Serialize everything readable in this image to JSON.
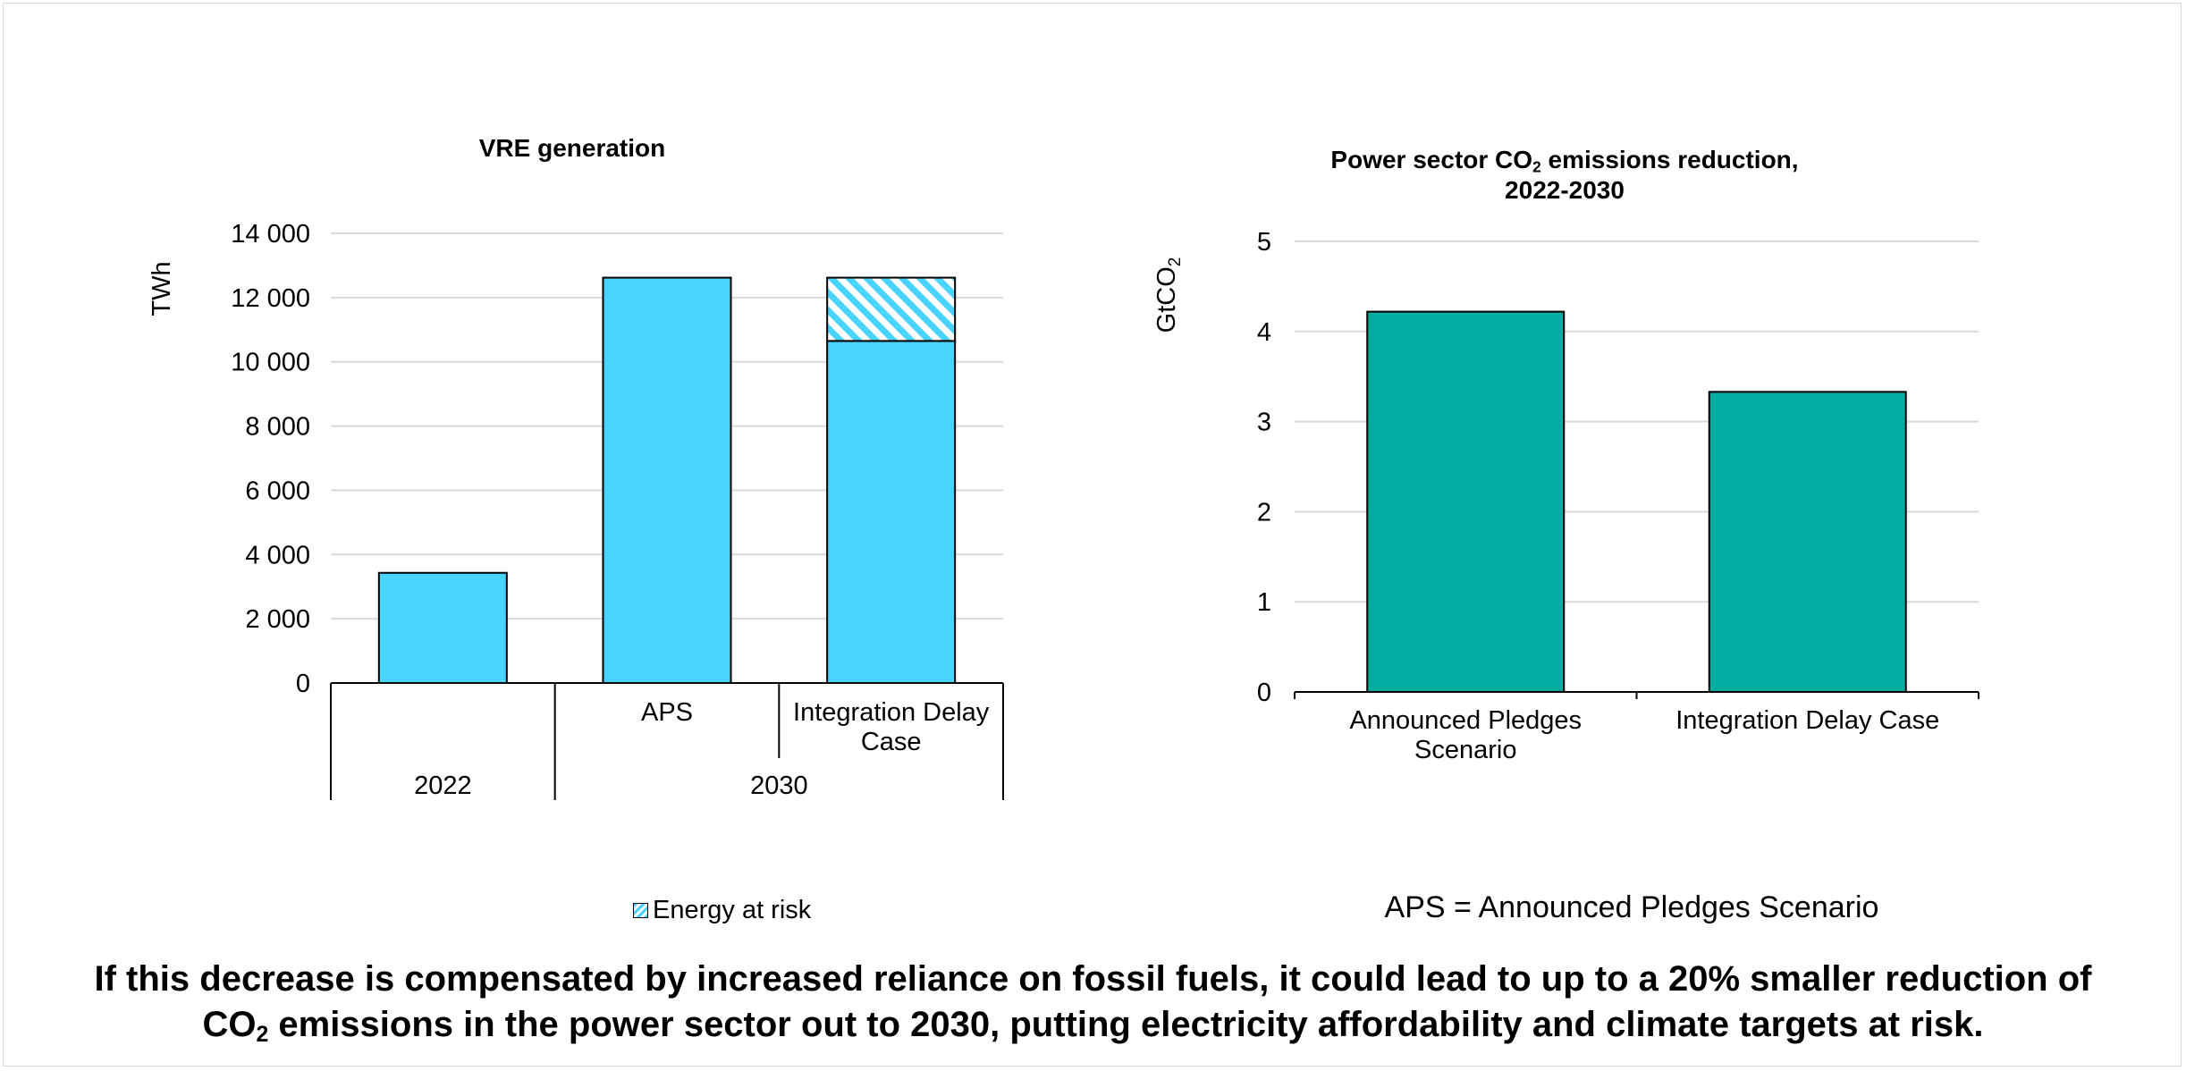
{
  "colors": {
    "vre": "#49d3ff",
    "emissions": "#00ada0",
    "grid": "#d9d9d9",
    "axis": "#000000"
  },
  "chart_data": [
    {
      "type": "bar",
      "title": "VRE generation",
      "ylabel": "TWh",
      "ylim": [
        0,
        14000
      ],
      "yticks": [
        0,
        2000,
        4000,
        6000,
        8000,
        10000,
        12000,
        14000
      ],
      "ytick_labels": [
        "0",
        "2 000",
        "4 000",
        "6 000",
        "8 000",
        "10 000",
        "12 000",
        "14 000"
      ],
      "categories": [
        "",
        "APS",
        "Integration Delay Case"
      ],
      "category_groups": [
        {
          "label": "2022",
          "span": 1
        },
        {
          "label": "2030",
          "span": 2
        }
      ],
      "series": [
        {
          "values": [
            3430,
            12620,
            10650
          ]
        },
        {
          "name": "Energy at risk",
          "values": [
            0,
            0,
            1970
          ],
          "pattern": "hatched"
        }
      ],
      "legend": {
        "position": "bottom",
        "entries": [
          "Energy at risk"
        ]
      },
      "grid": true
    },
    {
      "type": "bar",
      "title_main": "Power sector CO",
      "title_sub": "2",
      "title_rest": " emissions reduction,",
      "title_line2": "2022-2030",
      "ylabel_main": "GtCO",
      "ylabel_sub": "2",
      "ylim": [
        0,
        5
      ],
      "yticks": [
        0,
        1,
        2,
        3,
        4,
        5
      ],
      "ytick_labels": [
        "0",
        "1",
        "2",
        "3",
        "4",
        "5"
      ],
      "categories": [
        "Announced Pledges Scenario",
        "Integration Delay Case"
      ],
      "category_lines": [
        [
          "Announced Pledges",
          "Scenario"
        ],
        [
          "Integration Delay Case"
        ]
      ],
      "series": [
        {
          "values": [
            4.22,
            3.33
          ]
        }
      ],
      "grid": true
    }
  ],
  "note": "APS = Announced Pledges Scenario",
  "caption": {
    "line1": "If this decrease is compensated by increased reliance on fossil fuels, it could lead to up to a 20% smaller reduction of",
    "line2_pre": "CO",
    "line2_sub": "2",
    "line2_post": " emissions in the power sector out to 2030, putting electricity affordability and climate targets at risk."
  }
}
